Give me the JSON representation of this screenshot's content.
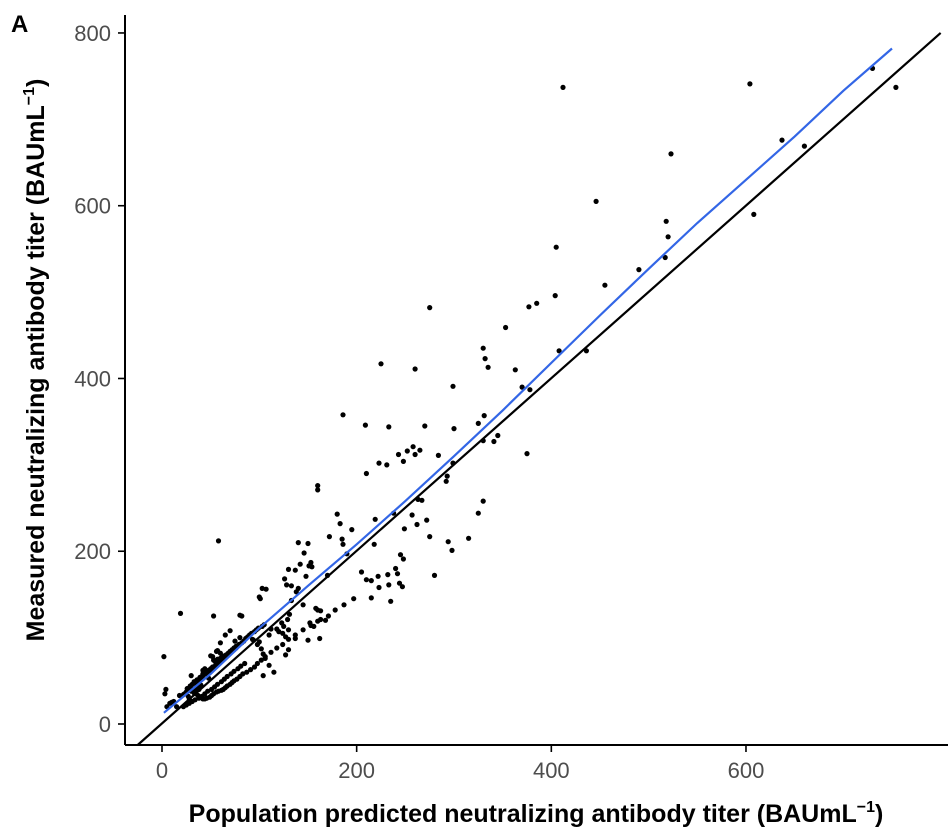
{
  "panel_label": "A",
  "chart_data": {
    "type": "scatter",
    "xlabel": "Population predicted neutralizing antibody titer (BAUmL",
    "ylabel": "Measured neutralizing antibody titer (BAUmL",
    "unit_exponent": "−1",
    "unit_close": ")",
    "xlim": [
      -35,
      800
    ],
    "ylim": [
      -25,
      820
    ],
    "x_ticks": [
      0,
      200,
      400,
      600
    ],
    "y_ticks": [
      0,
      200,
      400,
      600,
      800
    ],
    "x_tick_labels": [
      "0",
      "200",
      "400",
      "600"
    ],
    "y_tick_labels": [
      "0",
      "200",
      "400",
      "600",
      "800"
    ],
    "grid": false,
    "colors": {
      "points": "#000000",
      "identity_line": "#000000",
      "smooth_line": "#3366e6"
    },
    "identity_line": {
      "x": [
        -25,
        800
      ],
      "y": [
        -25,
        800
      ]
    },
    "smooth_line": {
      "x": [
        2,
        50,
        100,
        150,
        200,
        250,
        300,
        350,
        400,
        450,
        500,
        550,
        600,
        650,
        700,
        750
      ],
      "y": [
        13,
        58,
        111,
        160,
        208,
        258,
        310,
        363,
        418,
        473,
        527,
        580,
        630,
        680,
        733,
        782
      ]
    },
    "points": {
      "x": [
        412,
        604,
        730,
        754,
        523,
        446,
        637,
        660,
        608,
        518,
        520,
        517,
        405,
        490,
        455,
        275,
        408,
        404,
        385,
        377,
        353,
        330,
        332,
        335,
        363,
        370,
        345,
        299,
        375,
        378,
        436,
        225,
        260,
        186,
        209,
        233,
        270,
        258,
        252,
        265,
        260,
        293,
        299,
        300,
        284,
        292,
        341,
        331,
        325,
        330,
        330,
        325,
        315,
        210,
        223,
        243,
        248,
        231,
        238,
        219,
        218,
        263,
        267,
        257,
        272,
        262,
        249,
        275,
        294,
        298,
        280,
        160,
        160,
        180,
        195,
        183,
        170,
        185,
        172,
        186,
        190,
        205,
        210,
        215,
        222,
        223,
        215,
        245,
        248,
        240,
        242,
        232,
        233,
        244,
        247,
        235,
        150,
        140,
        146,
        153,
        151,
        154,
        142,
        148,
        137,
        130,
        126,
        128,
        133,
        140,
        138,
        133,
        145,
        158,
        160,
        163,
        131,
        129,
        123,
        125,
        130,
        127,
        137,
        150,
        162,
        163,
        168,
        152,
        156,
        130,
        127,
        112,
        94,
        110,
        98,
        102,
        104,
        106,
        110,
        115,
        100,
        105,
        118,
        120,
        124,
        103,
        93,
        104,
        80,
        82,
        100,
        101,
        103,
        107,
        58,
        70,
        65,
        80,
        75,
        60,
        57,
        56,
        60,
        50,
        52,
        50,
        44,
        42,
        45,
        47,
        48,
        35,
        38,
        30,
        33,
        34,
        36,
        26,
        25,
        27,
        28,
        22,
        23,
        18,
        15,
        12,
        10,
        8,
        5,
        3,
        2,
        30,
        40,
        30,
        32,
        34,
        33,
        36,
        38,
        40,
        41,
        42,
        48,
        50,
        52,
        55,
        58,
        55,
        53,
        57,
        60,
        62,
        64,
        66,
        68,
        70,
        72,
        74,
        76,
        79,
        82,
        84,
        86,
        88,
        90,
        92,
        95,
        97,
        99,
        35,
        37,
        40,
        42,
        44,
        46,
        49,
        51,
        53,
        56,
        58,
        61,
        63,
        65,
        67,
        70,
        72,
        74,
        77,
        80,
        83,
        87,
        91,
        95,
        98,
        102,
        106,
        112,
        118,
        124,
        130,
        137,
        145,
        153,
        160,
        171,
        178,
        187,
        197,
        22,
        25,
        28,
        31,
        34,
        38,
        41,
        44,
        47,
        51,
        54,
        57,
        61,
        64,
        67,
        71,
        74,
        78,
        81,
        85,
        26,
        29,
        31,
        33,
        36,
        39,
        42,
        45,
        48,
        50,
        52,
        55,
        57,
        59,
        62,
        64,
        66,
        69,
        71,
        74,
        76,
        53,
        19,
        4
      ],
      "y": [
        737,
        741,
        759,
        737,
        660,
        605,
        676,
        669,
        590,
        582,
        564,
        540,
        552,
        526,
        508,
        482,
        432,
        496,
        487,
        483,
        459,
        435,
        423,
        413,
        410,
        390,
        334,
        391,
        313,
        387,
        432,
        417,
        411,
        358,
        346,
        344,
        345,
        321,
        316,
        317,
        312,
        287,
        302,
        342,
        311,
        281,
        327,
        357,
        348,
        328,
        258,
        244,
        215,
        290,
        302,
        312,
        304,
        300,
        244,
        237,
        208,
        260,
        259,
        242,
        236,
        231,
        226,
        217,
        211,
        201,
        172,
        276,
        271,
        243,
        225,
        232,
        172,
        214,
        217,
        208,
        197,
        176,
        167,
        166,
        171,
        158,
        146,
        196,
        191,
        180,
        174,
        173,
        161,
        163,
        159,
        142,
        209,
        210,
        198,
        187,
        183,
        182,
        185,
        171,
        178,
        179,
        168,
        161,
        160,
        157,
        153,
        143,
        138,
        134,
        132,
        131,
        127,
        121,
        117,
        113,
        109,
        101,
        99,
        97,
        99,
        121,
        120,
        117,
        113,
        86,
        80,
        110,
        97,
        103,
        92,
        87,
        81,
        76,
        68,
        60,
        95,
        115,
        110,
        107,
        105,
        113,
        98,
        56,
        126,
        125,
        147,
        145,
        157,
        156,
        212,
        108,
        103,
        100,
        96,
        94,
        85,
        84,
        82,
        79,
        78,
        63,
        64,
        62,
        61,
        58,
        53,
        42,
        40,
        38,
        36,
        40,
        44,
        41,
        37,
        32,
        29,
        34,
        35,
        33,
        20,
        26,
        25,
        24,
        20,
        35,
        78,
        56,
        45,
        41,
        39,
        37,
        40,
        45,
        49,
        52,
        55,
        58,
        62,
        64,
        66,
        68,
        70,
        72,
        74,
        75,
        76,
        78,
        79,
        80,
        82,
        84,
        86,
        88,
        90,
        92,
        94,
        96,
        99,
        101,
        103,
        105,
        107,
        109,
        111,
        35,
        33,
        31,
        29,
        29,
        30,
        31,
        33,
        35,
        37,
        38,
        39,
        40,
        42,
        44,
        46,
        48,
        50,
        52,
        55,
        58,
        60,
        63,
        66,
        70,
        74,
        78,
        83,
        88,
        92,
        98,
        103,
        109,
        114,
        119,
        125,
        132,
        138,
        145,
        20,
        22,
        24,
        26,
        28,
        30,
        32,
        35,
        38,
        40,
        43,
        46,
        49,
        52,
        55,
        58,
        61,
        64,
        67,
        70,
        41,
        44,
        46,
        49,
        51,
        54,
        56,
        58,
        60,
        62,
        64,
        67,
        70,
        72,
        74,
        77,
        79,
        81,
        84,
        86,
        88,
        125,
        128,
        40
      ]
    }
  }
}
